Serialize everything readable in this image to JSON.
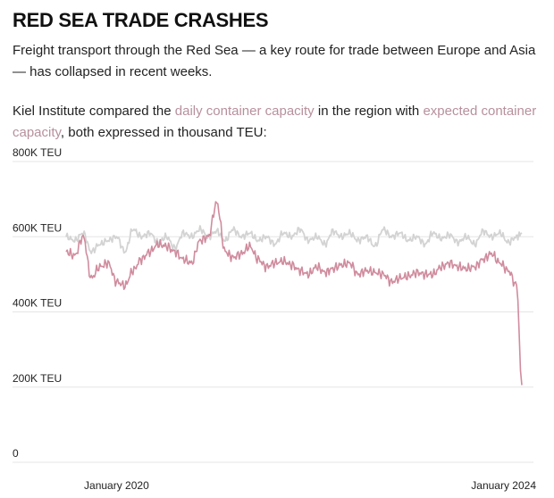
{
  "header": {
    "title": "RED SEA TRADE CRASHES",
    "subtitle": "Freight transport through the Red Sea — a key route for trade between Europe and Asia — has collapsed in recent weeks.",
    "description": {
      "prefix": " Kiel Institute compared the ",
      "series1_link": "daily container capacity",
      "middle": " in the region with ",
      "series2_link": "expected container capacity",
      "suffix": ", both expressed in thousand TEU:"
    }
  },
  "colors": {
    "daily": "#d08c9e",
    "expected": "#d3d3d3",
    "grid": "#e5e5e5"
  },
  "chart_data": {
    "type": "line",
    "title": "RED SEA TRADE CRASHES",
    "x_range": [
      "2019-07-01",
      "2024-01-20"
    ],
    "ylim": [
      0,
      800
    ],
    "y_ticks": [
      {
        "value": 0,
        "label": "0"
      },
      {
        "value": 200,
        "label": "200K TEU"
      },
      {
        "value": 400,
        "label": "400K TEU"
      },
      {
        "value": 600,
        "label": "600K TEU"
      },
      {
        "value": 800,
        "label": "800K TEU"
      }
    ],
    "x_ticks": [
      {
        "value": "2020-01-01",
        "label": "January 2020"
      },
      {
        "value": "2024-01-01",
        "label": "January 2024"
      }
    ],
    "grid": true,
    "legend": "inline-text",
    "series": [
      {
        "name": "daily container capacity",
        "x": [
          "2019-07-01",
          "2019-08-01",
          "2019-09-01",
          "2019-10-01",
          "2019-11-01",
          "2019-12-01",
          "2020-01-01",
          "2020-02-01",
          "2020-03-01",
          "2020-04-01",
          "2020-05-01",
          "2020-06-01",
          "2020-07-01",
          "2020-08-01",
          "2020-09-01",
          "2020-10-01",
          "2020-11-01",
          "2020-12-01",
          "2021-01-01",
          "2021-02-01",
          "2021-03-01",
          "2021-04-01",
          "2021-05-01",
          "2021-06-01",
          "2021-07-01",
          "2021-08-01",
          "2021-09-01",
          "2021-10-01",
          "2021-11-01",
          "2021-12-01",
          "2022-01-01",
          "2022-02-01",
          "2022-03-01",
          "2022-04-01",
          "2022-05-01",
          "2022-06-01",
          "2022-07-01",
          "2022-08-01",
          "2022-09-01",
          "2022-10-01",
          "2022-11-01",
          "2022-12-01",
          "2023-01-01",
          "2023-02-01",
          "2023-03-01",
          "2023-04-01",
          "2023-05-01",
          "2023-06-01",
          "2023-07-01",
          "2023-08-01",
          "2023-09-01",
          "2023-10-01",
          "2023-11-01",
          "2023-12-01",
          "2024-01-01",
          "2024-01-20"
        ],
        "values": [
          560,
          550,
          600,
          490,
          520,
          530,
          480,
          470,
          510,
          540,
          560,
          580,
          575,
          560,
          540,
          530,
          590,
          600,
          690,
          560,
          545,
          555,
          575,
          540,
          520,
          530,
          535,
          525,
          510,
          500,
          520,
          505,
          515,
          525,
          530,
          500,
          510,
          505,
          500,
          480,
          490,
          495,
          505,
          500,
          500,
          520,
          530,
          520,
          515,
          520,
          540,
          555,
          530,
          510,
          470,
          205
        ]
      },
      {
        "name": "expected container capacity",
        "x": [
          "2019-07-01",
          "2019-08-01",
          "2019-09-01",
          "2019-10-01",
          "2019-11-01",
          "2019-12-01",
          "2020-01-01",
          "2020-02-01",
          "2020-03-01",
          "2020-04-01",
          "2020-05-01",
          "2020-06-01",
          "2020-07-01",
          "2020-08-01",
          "2020-09-01",
          "2020-10-01",
          "2020-11-01",
          "2020-12-01",
          "2021-01-01",
          "2021-02-01",
          "2021-03-01",
          "2021-04-01",
          "2021-05-01",
          "2021-06-01",
          "2021-07-01",
          "2021-08-01",
          "2021-09-01",
          "2021-10-01",
          "2021-11-01",
          "2021-12-01",
          "2022-01-01",
          "2022-02-01",
          "2022-03-01",
          "2022-04-01",
          "2022-05-01",
          "2022-06-01",
          "2022-07-01",
          "2022-08-01",
          "2022-09-01",
          "2022-10-01",
          "2022-11-01",
          "2022-12-01",
          "2023-01-01",
          "2023-02-01",
          "2023-03-01",
          "2023-04-01",
          "2023-05-01",
          "2023-06-01",
          "2023-07-01",
          "2023-08-01",
          "2023-09-01",
          "2023-10-01",
          "2023-11-01",
          "2023-12-01",
          "2024-01-01",
          "2024-01-20"
        ],
        "values": [
          600,
          590,
          610,
          560,
          580,
          590,
          600,
          560,
          620,
          600,
          610,
          585,
          600,
          570,
          610,
          600,
          620,
          600,
          615,
          590,
          620,
          600,
          610,
          590,
          600,
          580,
          610,
          600,
          620,
          590,
          600,
          580,
          615,
          600,
          610,
          590,
          600,
          575,
          620,
          600,
          610,
          590,
          600,
          580,
          610,
          595,
          605,
          585,
          600,
          580,
          615,
          600,
          610,
          585,
          600,
          610
        ]
      }
    ]
  }
}
